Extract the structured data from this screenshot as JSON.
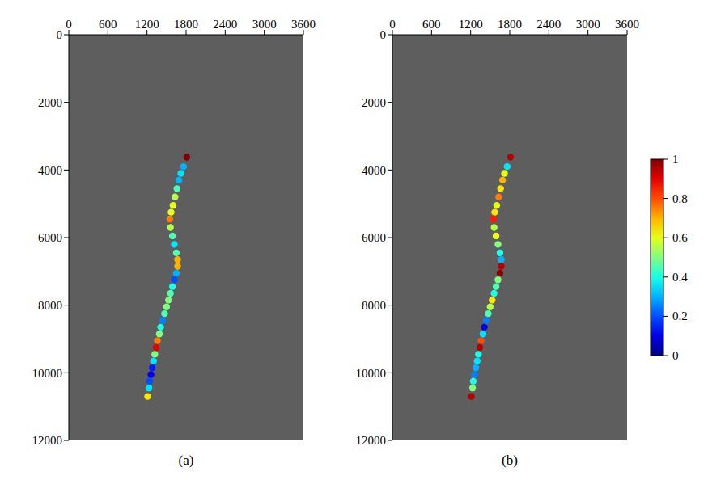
{
  "chart_data": [
    {
      "type": "scatter",
      "title": "(a)",
      "x": [
        1810,
        1760,
        1720,
        1690,
        1660,
        1630,
        1600,
        1570,
        1550,
        1560,
        1590,
        1620,
        1650,
        1670,
        1670,
        1650,
        1620,
        1590,
        1560,
        1530,
        1500,
        1470,
        1440,
        1410,
        1390,
        1360,
        1340,
        1320,
        1300,
        1280,
        1260,
        1240,
        1230,
        1210
      ],
      "y": [
        3620,
        3900,
        4100,
        4300,
        4550,
        4800,
        5050,
        5250,
        5450,
        5700,
        5950,
        6200,
        6450,
        6650,
        6850,
        7050,
        7250,
        7450,
        7650,
        7850,
        8050,
        8250,
        8450,
        8650,
        8850,
        9050,
        9250,
        9450,
        9650,
        9850,
        10050,
        10250,
        10450,
        10700
      ],
      "values": [
        1.0,
        0.3,
        0.35,
        0.3,
        0.45,
        0.55,
        0.6,
        0.6,
        0.75,
        0.55,
        0.45,
        0.35,
        0.45,
        0.7,
        0.7,
        0.3,
        0.2,
        0.4,
        0.45,
        0.5,
        0.5,
        0.45,
        0.25,
        0.4,
        0.5,
        0.75,
        0.9,
        0.5,
        0.35,
        0.15,
        0.1,
        0.2,
        0.35,
        0.65
      ],
      "xlim": [
        0,
        3600
      ],
      "xticks": [
        0,
        600,
        1200,
        1800,
        2400,
        3000,
        3600
      ],
      "ylim": [
        12000,
        0
      ],
      "yticks": [
        0,
        2000,
        4000,
        6000,
        8000,
        10000,
        12000
      ],
      "marker": "circle"
    },
    {
      "type": "scatter",
      "title": "(b)",
      "x": [
        1810,
        1760,
        1720,
        1690,
        1660,
        1630,
        1600,
        1570,
        1550,
        1560,
        1590,
        1620,
        1650,
        1670,
        1670,
        1650,
        1620,
        1590,
        1560,
        1530,
        1500,
        1470,
        1440,
        1410,
        1390,
        1360,
        1340,
        1320,
        1300,
        1280,
        1260,
        1240,
        1230,
        1210
      ],
      "y": [
        3620,
        3900,
        4100,
        4300,
        4550,
        4800,
        5050,
        5250,
        5450,
        5700,
        5950,
        6200,
        6450,
        6650,
        6850,
        7050,
        7250,
        7450,
        7650,
        7850,
        8050,
        8250,
        8450,
        8650,
        8850,
        9050,
        9250,
        9450,
        9650,
        9850,
        10050,
        10250,
        10450,
        10700
      ],
      "values": [
        0.95,
        0.35,
        0.6,
        0.7,
        0.65,
        0.75,
        0.6,
        0.65,
        0.85,
        0.55,
        0.6,
        0.5,
        0.4,
        0.3,
        0.95,
        1.0,
        0.5,
        0.45,
        0.4,
        0.65,
        0.55,
        0.45,
        0.25,
        0.1,
        0.35,
        0.8,
        0.95,
        0.4,
        0.35,
        0.3,
        0.25,
        0.4,
        0.5,
        0.95
      ],
      "xlim": [
        0,
        3600
      ],
      "xticks": [
        0,
        600,
        1200,
        1800,
        2400,
        3000,
        3600
      ],
      "ylim": [
        12000,
        0
      ],
      "yticks": [
        0,
        2000,
        4000,
        6000,
        8000,
        10000,
        12000
      ],
      "marker": "circle",
      "colorbar": {
        "range": [
          0,
          1
        ],
        "ticks": [
          0,
          0.2,
          0.4,
          0.6,
          0.8,
          1
        ]
      }
    }
  ]
}
